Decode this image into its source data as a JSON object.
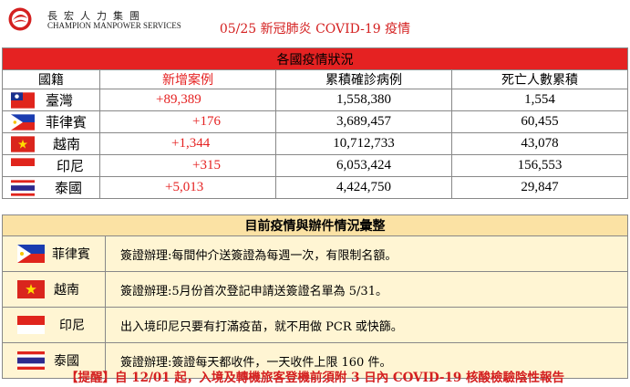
{
  "header": {
    "company_cn": "長宏人力集團",
    "company_en": "CHAMPION MANPOWER SERVICES",
    "title": "05/25 新冠肺炎 COVID-19 疫情"
  },
  "situation_table": {
    "header": "各國疫情狀況",
    "columns": [
      "國籍",
      "新增案例",
      "累積確診病例",
      "死亡人數累積"
    ],
    "rows": [
      {
        "country": "臺灣",
        "flag": "taiwan-flag",
        "new_cases": "+89,389",
        "total_cases": "1,558,380",
        "deaths": "1,554"
      },
      {
        "country": "菲律賓",
        "flag": "philippines-flag",
        "new_cases": "+176",
        "total_cases": "3,689,457",
        "deaths": "60,455"
      },
      {
        "country": "越南",
        "flag": "vietnam-flag",
        "new_cases": "+1,344",
        "total_cases": "10,712,733",
        "deaths": "43,078"
      },
      {
        "country": "印尼",
        "flag": "indonesia-flag",
        "new_cases": "+315",
        "total_cases": "6,053,424",
        "deaths": "156,553"
      },
      {
        "country": "泰國",
        "flag": "thailand-flag",
        "new_cases": "+5,013",
        "total_cases": "4,424,750",
        "deaths": "29,847"
      }
    ]
  },
  "procedure_table": {
    "header": "目前疫情與辦件情況彙整",
    "rows": [
      {
        "country": "菲律賓",
        "flag": "philippines-flag",
        "note": "簽證辦理:每間仲介送簽證為每週一次，有限制名額。"
      },
      {
        "country": "越南",
        "flag": "vietnam-flag",
        "note": "簽證辦理:5月份首次登記申請送簽證名單為 5/31。"
      },
      {
        "country": "印尼",
        "flag": "indonesia-flag",
        "note": "出入境印尼只要有打滿疫苗，就不用做 PCR 或快篩。"
      },
      {
        "country": "泰國",
        "flag": "thailand-flag",
        "note": "簽證辦理:簽證每天都收件，一天收件上限 160 件。"
      }
    ]
  },
  "footer": "【提醒】自 12/01 起，入境及轉機旅客登機前須附 3 日內 COVID-19 核酸檢驗陰性報告",
  "colors": {
    "red_header": "#e52222",
    "beige_header": "#fbe2a4",
    "beige_row": "#fff5d3",
    "title_red": "#d42020"
  }
}
